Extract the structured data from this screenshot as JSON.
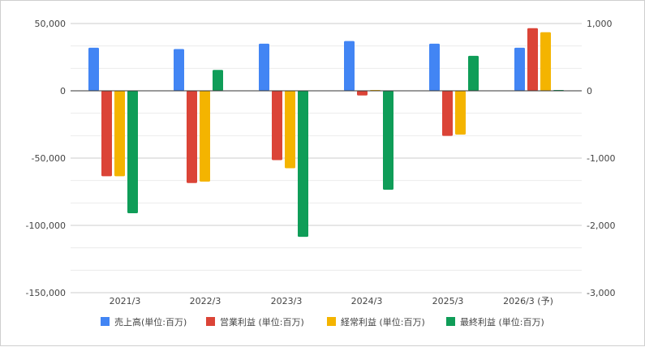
{
  "chart_data": {
    "type": "bar",
    "categories": [
      "2021/3",
      "2022/3",
      "2023/3",
      "2024/3",
      "2025/3",
      "2026/3 (予)"
    ],
    "left_axis": {
      "ticks": [
        "50,000",
        "0",
        "-50,000",
        "-100,000",
        "-150,000"
      ],
      "ylim": [
        -150000,
        50000
      ]
    },
    "right_axis": {
      "ticks": [
        "1,000",
        "0",
        "-1,000",
        "-2,000",
        "-3,000"
      ],
      "ylim": [
        -3000,
        1000
      ]
    },
    "series": [
      {
        "name": "売上高(単位:百万)",
        "axis": "left",
        "color": "#4285F4",
        "values": [
          32000,
          31000,
          35000,
          37000,
          35000,
          32000
        ]
      },
      {
        "name": "営業利益 (単位:百万)",
        "axis": "right",
        "color": "#DB4437",
        "values": [
          -1270,
          -1370,
          -1030,
          -70,
          -670,
          930
        ]
      },
      {
        "name": "経常利益 (単位:百万)",
        "axis": "right",
        "color": "#F4B400",
        "values": [
          -1270,
          -1350,
          -1150,
          10,
          -650,
          870
        ]
      },
      {
        "name": "最終利益 (単位:百万)",
        "axis": "right",
        "color": "#0F9D58",
        "values": [
          -1820,
          310,
          -2170,
          -1470,
          520,
          5
        ]
      }
    ],
    "grid": true,
    "legend_position": "bottom"
  }
}
